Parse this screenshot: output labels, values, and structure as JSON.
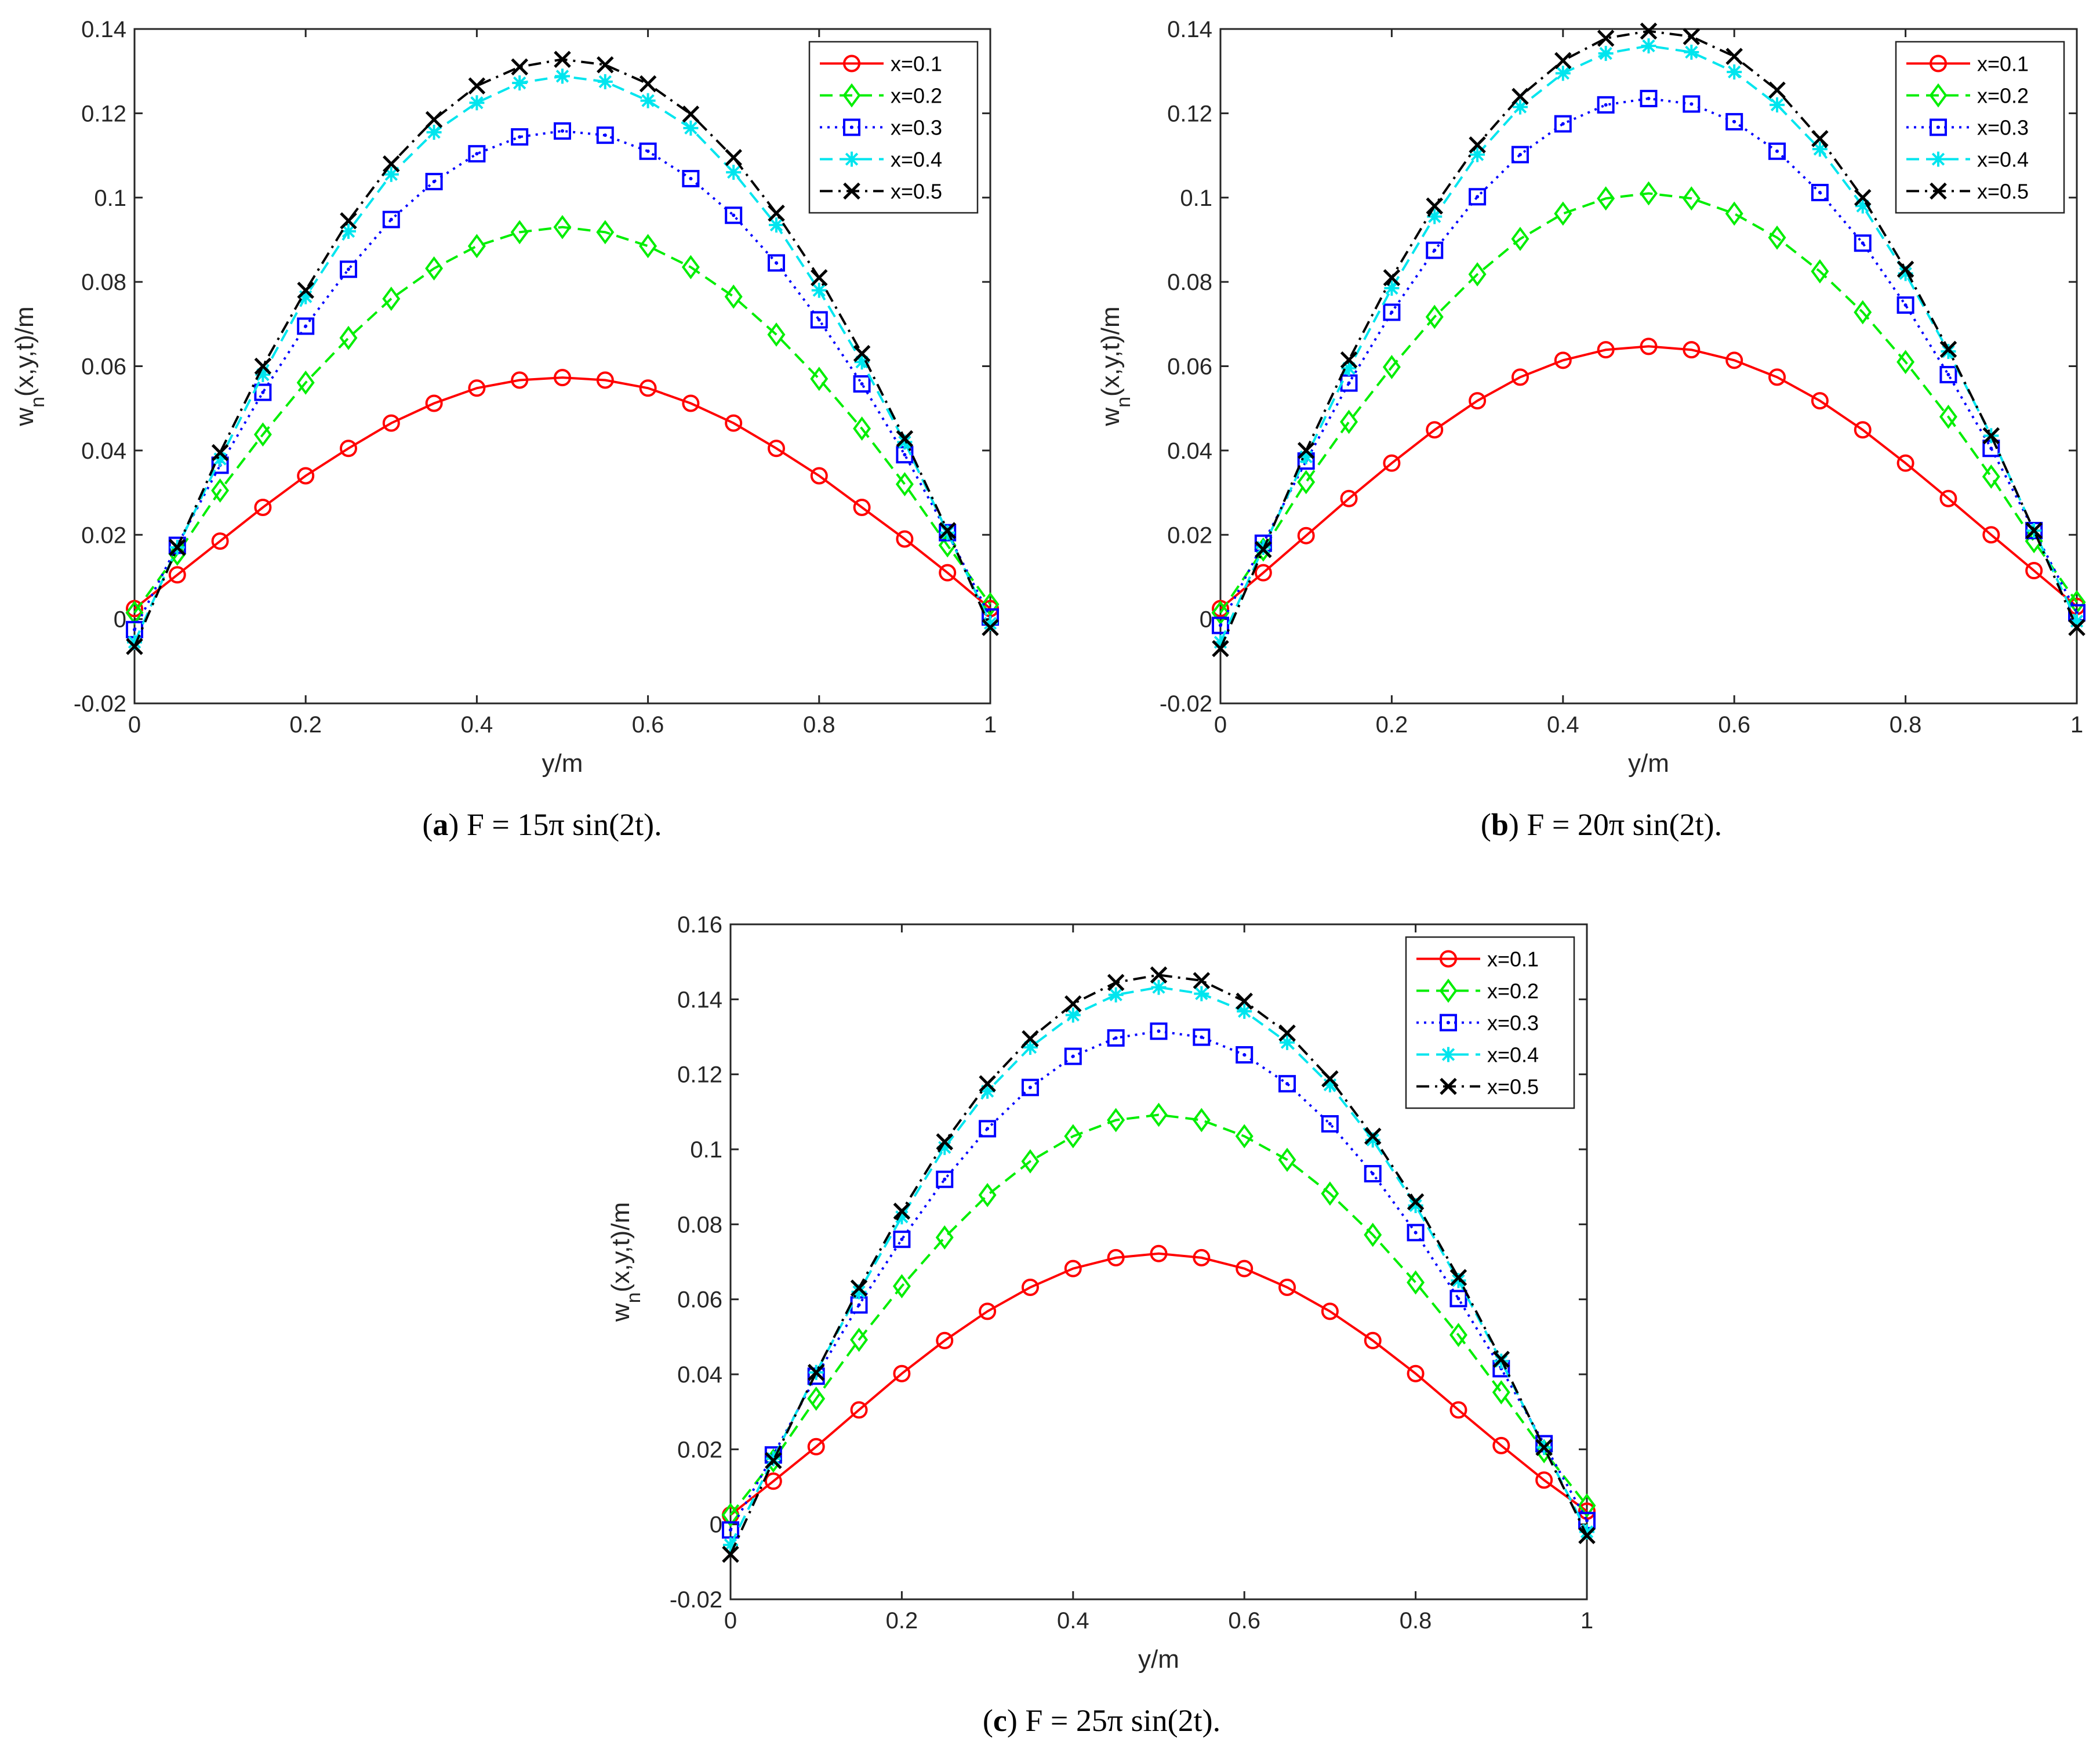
{
  "chart_data": [
    {
      "type": "line",
      "panel": "a",
      "caption": {
        "label": "a",
        "formula": "F = 15π sin(2t)."
      },
      "xlabel": "y/m",
      "ylabel": "w_n(x,y,t)/m",
      "xlim": [
        0,
        1
      ],
      "ylim": [
        -0.02,
        0.14
      ],
      "xticks": [
        "0",
        "0.2",
        "0.4",
        "0.6",
        "0.8",
        "1"
      ],
      "yticks": [
        "-0.02",
        "0",
        "0.02",
        "0.04",
        "0.06",
        "0.08",
        "0.1",
        "0.12",
        "0.14"
      ],
      "legend_position": "top-right",
      "x": [
        0,
        0.05,
        0.1,
        0.15,
        0.2,
        0.25,
        0.3,
        0.35,
        0.4,
        0.45,
        0.5,
        0.55,
        0.6,
        0.65,
        0.7,
        0.75,
        0.8,
        0.85,
        0.9,
        0.95,
        1.0
      ],
      "series": [
        {
          "name": "x=0.1",
          "values": [
            0.0025,
            0.0105,
            0.0185,
            0.0265,
            0.034,
            0.0405,
            0.0465,
            0.0512,
            0.0548,
            0.0567,
            0.0573,
            0.0567,
            0.0548,
            0.0512,
            0.0465,
            0.0405,
            0.034,
            0.0265,
            0.019,
            0.011,
            0.0025
          ]
        },
        {
          "name": "x=0.2",
          "values": [
            0.0015,
            0.0155,
            0.0305,
            0.0438,
            0.0561,
            0.0667,
            0.076,
            0.0832,
            0.0885,
            0.0918,
            0.093,
            0.0918,
            0.0885,
            0.0835,
            0.0765,
            0.0675,
            0.057,
            0.0452,
            0.032,
            0.0175,
            0.0035
          ]
        },
        {
          "name": "x=0.3",
          "values": [
            -0.0025,
            0.0175,
            0.0365,
            0.0538,
            0.0695,
            0.083,
            0.0948,
            0.1038,
            0.1104,
            0.1144,
            0.1158,
            0.1148,
            0.111,
            0.1045,
            0.0958,
            0.0845,
            0.071,
            0.0558,
            0.039,
            0.0205,
            0.0005
          ]
        },
        {
          "name": "x=0.4",
          "values": [
            -0.0055,
            0.017,
            0.038,
            0.058,
            0.0765,
            0.092,
            0.1055,
            0.1155,
            0.1225,
            0.1272,
            0.1288,
            0.1275,
            0.123,
            0.1165,
            0.106,
            0.0935,
            0.078,
            0.061,
            0.042,
            0.0205,
            -0.001
          ]
        },
        {
          "name": "x=0.5",
          "values": [
            -0.0065,
            0.017,
            0.0395,
            0.06,
            0.078,
            0.0945,
            0.108,
            0.1185,
            0.1265,
            0.131,
            0.1328,
            0.1315,
            0.127,
            0.1198,
            0.1095,
            0.0963,
            0.081,
            0.063,
            0.0428,
            0.021,
            -0.002
          ]
        }
      ]
    },
    {
      "type": "line",
      "panel": "b",
      "caption": {
        "label": "b",
        "formula": "F = 20π sin(2t)."
      },
      "xlabel": "y/m",
      "ylabel": "w_n(x,y,t)/m",
      "xlim": [
        0,
        1
      ],
      "ylim": [
        -0.02,
        0.14
      ],
      "xticks": [
        "0",
        "0.2",
        "0.4",
        "0.6",
        "0.8",
        "1"
      ],
      "yticks": [
        "-0.02",
        "0",
        "0.02",
        "0.04",
        "0.06",
        "0.08",
        "0.1",
        "0.12",
        "0.14"
      ],
      "legend_position": "top-right",
      "x": [
        0,
        0.05,
        0.1,
        0.15,
        0.2,
        0.25,
        0.3,
        0.35,
        0.4,
        0.45,
        0.5,
        0.55,
        0.6,
        0.65,
        0.7,
        0.75,
        0.8,
        0.85,
        0.9,
        0.95,
        1.0
      ],
      "series": [
        {
          "name": "x=0.1",
          "values": [
            0.0025,
            0.011,
            0.0198,
            0.0286,
            0.037,
            0.0449,
            0.0518,
            0.0574,
            0.0614,
            0.0639,
            0.0647,
            0.0639,
            0.0614,
            0.0574,
            0.0518,
            0.0449,
            0.037,
            0.0286,
            0.02,
            0.0115,
            0.003
          ]
        },
        {
          "name": "x=0.2",
          "values": [
            0.0015,
            0.0165,
            0.0325,
            0.0468,
            0.0598,
            0.0717,
            0.0818,
            0.0902,
            0.0962,
            0.0998,
            0.101,
            0.0998,
            0.0962,
            0.0905,
            0.0825,
            0.0728,
            0.061,
            0.048,
            0.0338,
            0.0185,
            0.004
          ]
        },
        {
          "name": "x=0.3",
          "values": [
            -0.0015,
            0.018,
            0.0375,
            0.056,
            0.0728,
            0.0875,
            0.1002,
            0.1102,
            0.1175,
            0.122,
            0.1235,
            0.1222,
            0.118,
            0.111,
            0.1012,
            0.0892,
            0.0745,
            0.058,
            0.0405,
            0.021,
            0.0015
          ]
        },
        {
          "name": "x=0.4",
          "values": [
            -0.0055,
            0.017,
            0.0385,
            0.0595,
            0.0785,
            0.0955,
            0.1102,
            0.1215,
            0.1295,
            0.1342,
            0.136,
            0.1345,
            0.1298,
            0.122,
            0.1115,
            0.098,
            0.082,
            0.0635,
            0.0435,
            0.021,
            -0.0005
          ]
        },
        {
          "name": "x=0.5",
          "values": [
            -0.007,
            0.0165,
            0.04,
            0.0615,
            0.081,
            0.098,
            0.1125,
            0.124,
            0.1325,
            0.1378,
            0.1395,
            0.1382,
            0.1335,
            0.1255,
            0.114,
            0.1,
            0.083,
            0.064,
            0.0435,
            0.021,
            -0.002
          ]
        }
      ]
    },
    {
      "type": "line",
      "panel": "c",
      "caption": {
        "label": "c",
        "formula": "F = 25π sin(2t)."
      },
      "xlabel": "y/m",
      "ylabel": "w_n(x,y,t)/m",
      "xlim": [
        0,
        1
      ],
      "ylim": [
        -0.02,
        0.16
      ],
      "xticks": [
        "0",
        "0.2",
        "0.4",
        "0.6",
        "0.8",
        "1"
      ],
      "yticks": [
        "-0.02",
        "0",
        "0.02",
        "0.04",
        "0.06",
        "0.08",
        "0.1",
        "0.12",
        "0.14",
        "0.16"
      ],
      "legend_position": "top-right",
      "x": [
        0,
        0.05,
        0.1,
        0.15,
        0.2,
        0.25,
        0.3,
        0.35,
        0.4,
        0.45,
        0.5,
        0.55,
        0.6,
        0.65,
        0.7,
        0.75,
        0.8,
        0.85,
        0.9,
        0.95,
        1.0
      ],
      "series": [
        {
          "name": "x=0.1",
          "values": [
            0.0025,
            0.0115,
            0.0207,
            0.0305,
            0.0402,
            0.049,
            0.0568,
            0.0632,
            0.0682,
            0.0711,
            0.0722,
            0.0711,
            0.0682,
            0.0632,
            0.0568,
            0.049,
            0.0402,
            0.0305,
            0.021,
            0.0118,
            0.0035
          ]
        },
        {
          "name": "x=0.2",
          "values": [
            0.0025,
            0.017,
            0.0335,
            0.0492,
            0.0635,
            0.0765,
            0.0878,
            0.0968,
            0.1035,
            0.1078,
            0.1092,
            0.1078,
            0.1035,
            0.0972,
            0.0882,
            0.0772,
            0.0645,
            0.0505,
            0.0352,
            0.0195,
            0.005
          ]
        },
        {
          "name": "x=0.3",
          "values": [
            -0.0015,
            0.0185,
            0.0395,
            0.0585,
            0.076,
            0.092,
            0.1055,
            0.1165,
            0.1248,
            0.1297,
            0.1315,
            0.1299,
            0.1252,
            0.1175,
            0.1068,
            0.0935,
            0.0778,
            0.0602,
            0.0415,
            0.0215,
            0.001
          ]
        },
        {
          "name": "x=0.4",
          "values": [
            -0.0055,
            0.0175,
            0.0405,
            0.062,
            0.082,
            0.1005,
            0.1155,
            0.1272,
            0.1358,
            0.1412,
            0.1432,
            0.1415,
            0.1368,
            0.1285,
            0.1172,
            0.1025,
            0.085,
            0.065,
            0.0435,
            0.0205,
            -0.002
          ]
        },
        {
          "name": "x=0.5",
          "values": [
            -0.008,
            0.017,
            0.0405,
            0.063,
            0.0835,
            0.102,
            0.1175,
            0.1295,
            0.1388,
            0.1445,
            0.1465,
            0.145,
            0.1395,
            0.131,
            0.1188,
            0.1035,
            0.086,
            0.0658,
            0.044,
            0.0205,
            -0.003
          ]
        }
      ]
    }
  ],
  "series_styles": [
    {
      "color": "#ff0000",
      "dash": "none",
      "marker": "circle"
    },
    {
      "color": "#00ee00",
      "dash": "dashed",
      "marker": "diamond"
    },
    {
      "color": "#0000ff",
      "dash": "dotted",
      "marker": "square-dot"
    },
    {
      "color": "#00e5ee",
      "dash": "dashed",
      "marker": "asterisk"
    },
    {
      "color": "#000000",
      "dash": "dashdot",
      "marker": "x-cross"
    }
  ]
}
